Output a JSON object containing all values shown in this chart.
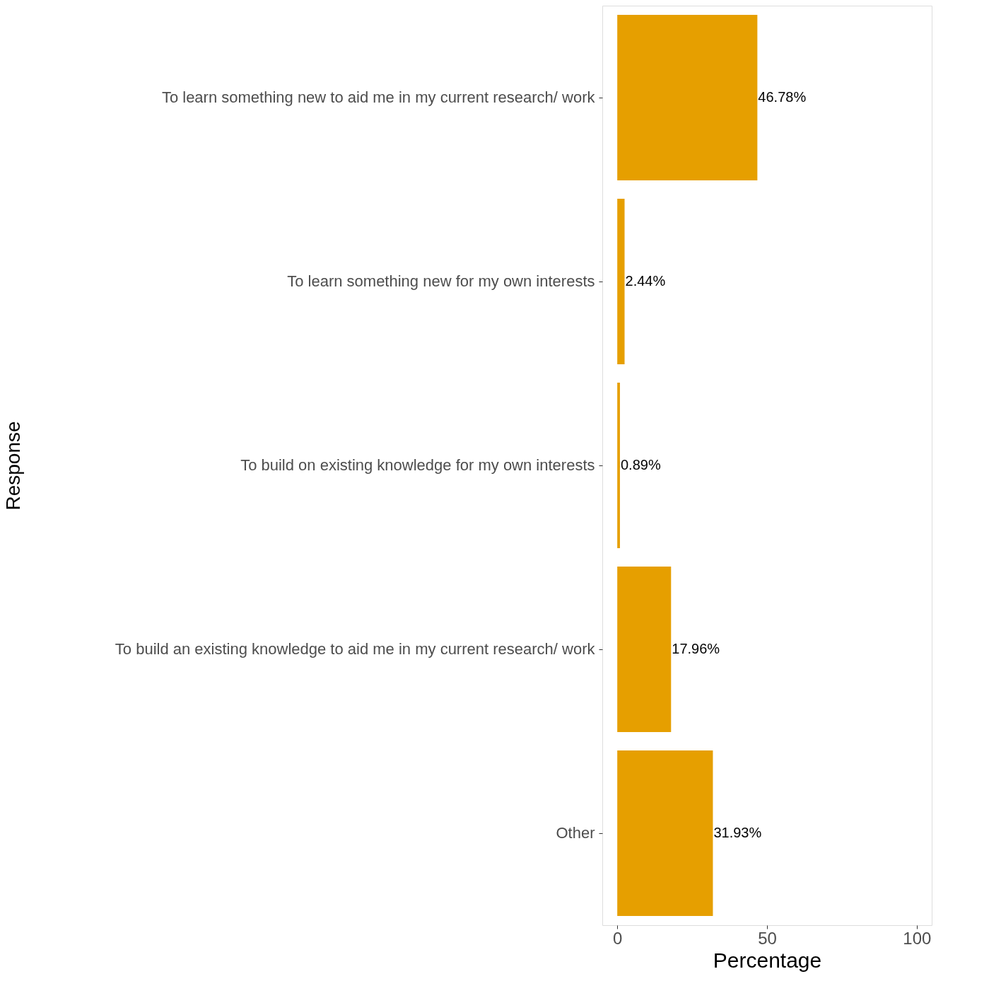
{
  "chart_data": {
    "type": "bar",
    "orientation": "horizontal",
    "xlabel": "Percentage",
    "ylabel": "Response",
    "categories": [
      "To learn something new to aid me in my current research/ work",
      "To learn something new for my own interests",
      "To build on existing knowledge for my own interests",
      "To build an existing knowledge to aid me in my current research/ work",
      "Other"
    ],
    "values": [
      46.78,
      2.44,
      0.89,
      17.96,
      31.93
    ],
    "value_labels": [
      "46.78%",
      "2.44%",
      "0.89%",
      "17.96%",
      "31.93%"
    ],
    "color": "#e69f00",
    "xlim": [
      -5,
      105
    ],
    "xticks": [
      0,
      50,
      100
    ],
    "grid": false
  }
}
